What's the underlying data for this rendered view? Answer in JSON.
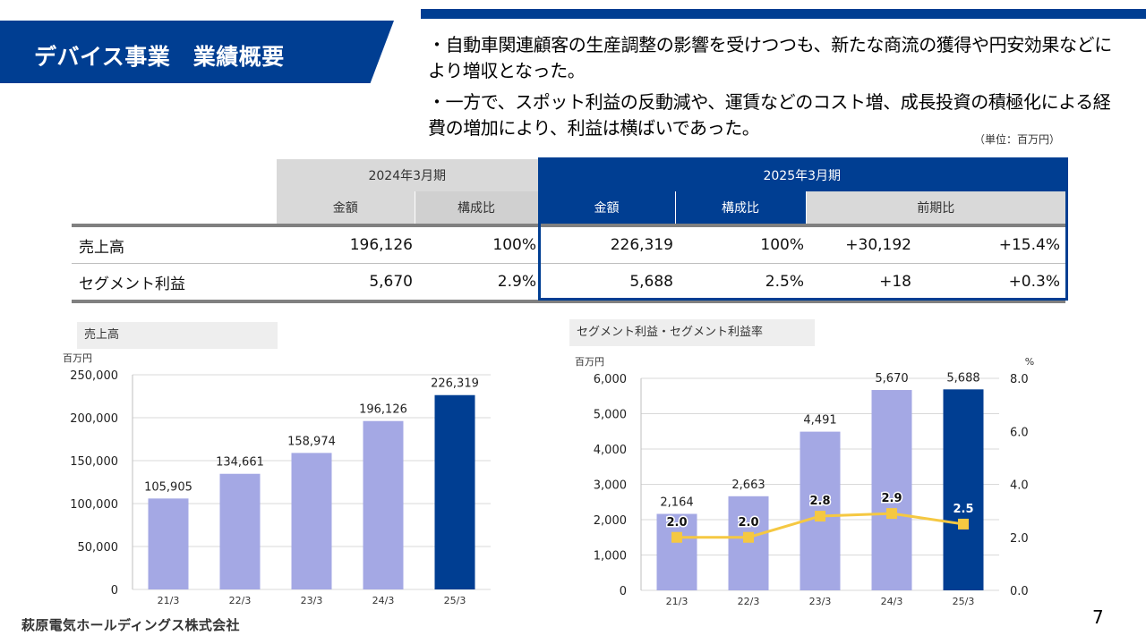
{
  "header": {
    "title": "デバイス事業　業績概要"
  },
  "bullets": [
    "・自動車関連顧客の生産調整の影響を受けつつも、新たな商流の獲得や円安効果などにより増収となった。",
    "・一方で、スポット利益の反動減や、運賃などのコスト増、成長投資の積極化による経費の増加により、利益は横ばいであった。"
  ],
  "unit_note": "（単位：百万円）",
  "summary_table": {
    "period_prev": "2024年3月期",
    "period_curr": "2025年3月期",
    "col_amount": "金額",
    "col_ratio": "構成比",
    "col_yoy": "前期比",
    "rows": [
      {
        "label": "売上高",
        "prev_amount": "196,126",
        "prev_ratio": "100%",
        "curr_amount": "226,319",
        "curr_ratio": "100%",
        "yoy_amount": "+30,192",
        "yoy_pct": "+15.4%"
      },
      {
        "label": "セグメント利益",
        "prev_amount": "5,670",
        "prev_ratio": "2.9%",
        "curr_amount": "5,688",
        "curr_ratio": "2.5%",
        "yoy_amount": "+18",
        "yoy_pct": "+0.3%"
      }
    ]
  },
  "chart_data": [
    {
      "type": "bar",
      "title": "売上高",
      "ylabel": "百万円",
      "categories": [
        "21/3",
        "22/3",
        "23/3",
        "24/3",
        "25/3"
      ],
      "values": [
        105905,
        134661,
        158974,
        196126,
        226319
      ],
      "labels": [
        "105,905",
        "134,661",
        "158,974",
        "196,126",
        "226,319"
      ],
      "ylim": [
        0,
        250000
      ],
      "yticks": [
        "0",
        "50,000",
        "100,000",
        "150,000",
        "200,000",
        "250,000"
      ],
      "colors": {
        "past": "#a4a8e4",
        "current": "#003e92"
      }
    },
    {
      "type": "bar+line",
      "title": "セグメント利益・セグメント利益率",
      "ylabel": "百万円",
      "y2label": "%",
      "categories": [
        "21/3",
        "22/3",
        "23/3",
        "24/3",
        "25/3"
      ],
      "bars": [
        2164,
        2663,
        4491,
        5670,
        5688
      ],
      "bar_labels": [
        "2,164",
        "2,663",
        "4,491",
        "5,670",
        "5,688"
      ],
      "line": [
        2.0,
        2.0,
        2.8,
        2.9,
        2.5
      ],
      "line_labels": [
        "2.0",
        "2.0",
        "2.8",
        "2.9",
        "2.5"
      ],
      "ylim": [
        0,
        6000
      ],
      "y2lim": [
        0,
        8
      ],
      "yticks": [
        "0",
        "1,000",
        "2,000",
        "3,000",
        "4,000",
        "5,000",
        "6,000"
      ],
      "y2ticks": [
        "0.0",
        "2.0",
        "4.0",
        "6.0",
        "8.0"
      ],
      "colors": {
        "past": "#a4a8e4",
        "current": "#003e92",
        "line": "#f5c842"
      }
    }
  ],
  "footer": {
    "page_number": "7",
    "logo_text": "萩原電気ホールディングス株式会社"
  }
}
